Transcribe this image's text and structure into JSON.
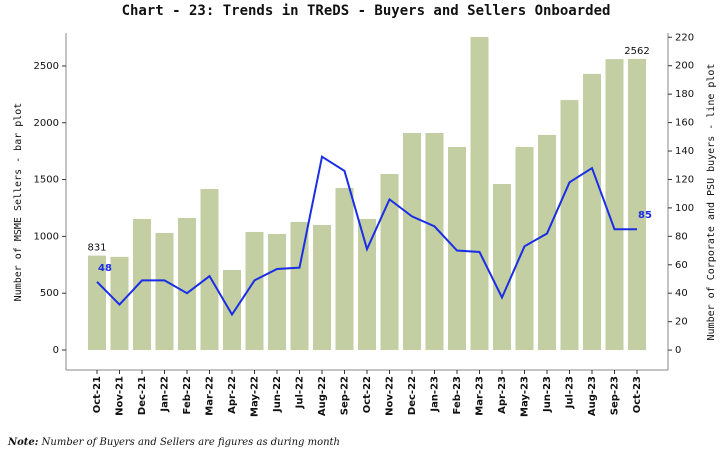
{
  "chart_data": {
    "type": "bar",
    "title": "Chart - 23: Trends in TReDS - Buyers and Sellers Onboarded",
    "y_label": "Number of MSME Sellers - bar plot",
    "y2_label": "Number of Corporate and PSU buyers - line plot",
    "categories": [
      "Oct-21",
      "Nov-21",
      "Dec-21",
      "Jan-22",
      "Feb-22",
      "Mar-22",
      "Apr-22",
      "May-22",
      "Jun-22",
      "Jul-22",
      "Aug-22",
      "Sep-22",
      "Oct-22",
      "Nov-22",
      "Dec-22",
      "Jan-23",
      "Feb-23",
      "Mar-23",
      "Apr-23",
      "May-23",
      "Jun-23",
      "Jul-23",
      "Aug-23",
      "Sep-23",
      "Oct-23"
    ],
    "series": [
      {
        "name": "MSME Sellers",
        "type": "bar",
        "color": "#c3cea2",
        "values": [
          831,
          820,
          1153,
          1030,
          1162,
          1417,
          704,
          1039,
          1021,
          1127,
          1100,
          1426,
          1153,
          1549,
          1910,
          1910,
          1787,
          2755,
          1461,
          1787,
          1893,
          2200,
          2430,
          2560,
          2562
        ]
      },
      {
        "name": "Corporate and PSU buyers",
        "type": "line",
        "axis": "y2",
        "color": "#1a2ee6",
        "values": [
          48,
          32,
          49,
          49,
          40,
          52,
          25,
          49,
          57,
          58,
          136,
          126,
          71,
          106,
          94,
          87,
          70,
          69,
          37,
          73,
          82,
          118,
          128,
          85,
          85
        ]
      }
    ],
    "ylim": [
      -176,
      2790
    ],
    "yticks": [
      0,
      500,
      1000,
      1500,
      2000,
      2500
    ],
    "y2lim": [
      -14,
      223
    ],
    "y2ticks": [
      0,
      20,
      40,
      60,
      80,
      100,
      120,
      140,
      160,
      180,
      200,
      220
    ]
  },
  "note": {
    "label": "Note:",
    "text": " Number of Buyers and Sellers are figures as during month"
  }
}
